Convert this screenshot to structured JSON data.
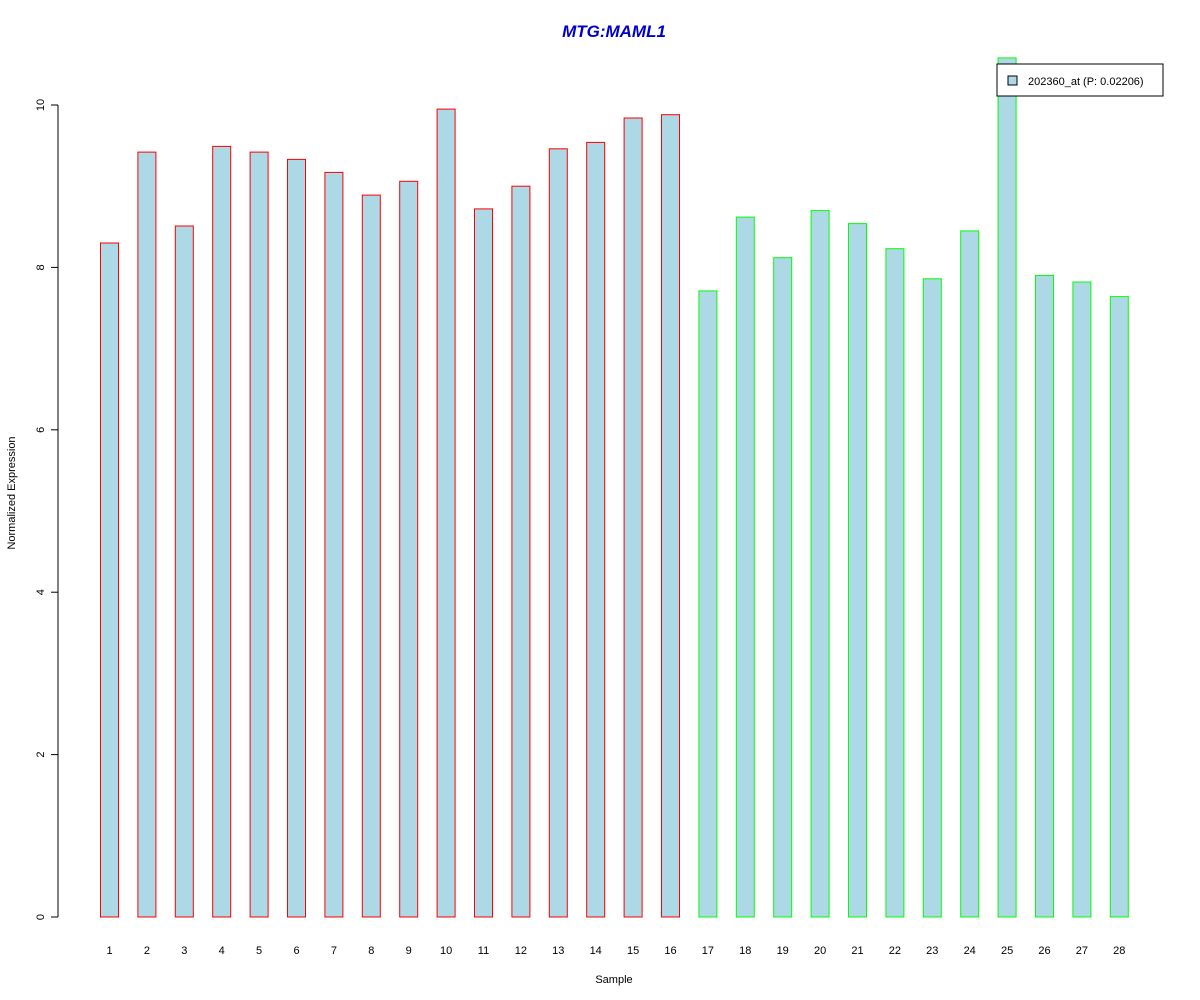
{
  "chart_data": {
    "type": "bar",
    "title": "MTG:MAML1",
    "xlabel": "Sample",
    "ylabel": "Normalized Expression",
    "ylim": [
      0,
      10.6
    ],
    "yticks": [
      "0",
      "2",
      "4",
      "6",
      "8",
      "10"
    ],
    "grid": false,
    "legend_position": "top-right",
    "categories": [
      "1",
      "2",
      "3",
      "4",
      "5",
      "6",
      "7",
      "8",
      "9",
      "10",
      "11",
      "12",
      "13",
      "14",
      "15",
      "16",
      "17",
      "18",
      "19",
      "20",
      "21",
      "22",
      "23",
      "24",
      "25",
      "26",
      "27",
      "28"
    ],
    "series": [
      {
        "name": "202360_at (P: 0.02206)",
        "values": [
          8.3,
          9.42,
          8.51,
          9.49,
          9.42,
          9.33,
          9.17,
          8.89,
          9.06,
          9.95,
          8.72,
          9.0,
          9.46,
          9.54,
          9.84,
          9.88,
          7.71,
          8.62,
          8.12,
          8.7,
          8.54,
          8.23,
          7.86,
          8.45,
          10.58,
          7.9,
          7.82,
          7.64
        ]
      }
    ],
    "group_outline": [
      "red",
      "red",
      "red",
      "red",
      "red",
      "red",
      "red",
      "red",
      "red",
      "red",
      "red",
      "red",
      "red",
      "red",
      "red",
      "red",
      "green",
      "green",
      "green",
      "green",
      "green",
      "green",
      "green",
      "green",
      "green",
      "green",
      "green",
      "green"
    ]
  },
  "colors": {
    "title": "#0000cc",
    "bar_fill": "#add8e6",
    "group_red": "#ff0000",
    "group_green": "#00ff00",
    "axis": "#000000"
  }
}
